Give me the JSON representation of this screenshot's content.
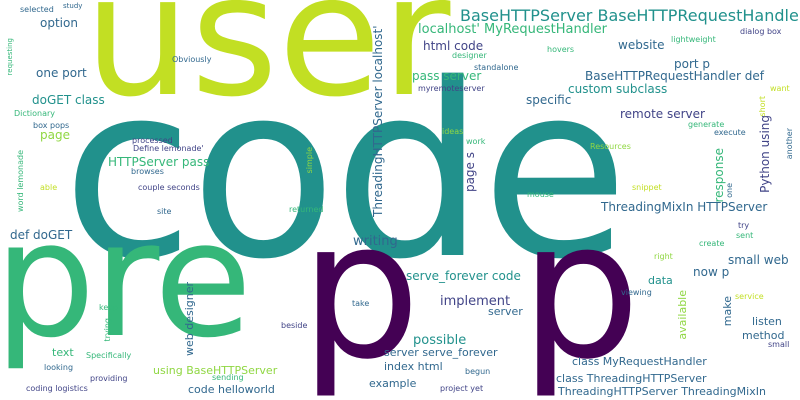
{
  "palette": {
    "dark_purple": "#440154",
    "indigo": "#414487",
    "blue": "#31688e",
    "teal": "#21918c",
    "green": "#35b779",
    "light_green": "#90d743",
    "yellow_green": "#c2df23",
    "yellow": "#fde725",
    "background": "#ffffff"
  },
  "words": {
    "user": "user",
    "code": "code",
    "pre": "pre",
    "p1": "p",
    "p2": "p",
    "basehttp_pair": "BaseHTTPServer BaseHTTPRequestHandler",
    "localhost_myrequest": "localhost' MyRequestHandler",
    "threading_localhost": "ThreadingHTTPServer localhost'",
    "html_code": "html code",
    "website": "website",
    "option": "option",
    "pass_server": "pass server",
    "one_port": "one port",
    "port_p": "port p",
    "doget_class": "doGET class",
    "base_def": "BaseHTTPRequestHandler def",
    "custom_subclass": "custom subclass",
    "specific": "specific",
    "remote_server": "remote server",
    "myremoteserver": "myremoteserver",
    "standalone": "standalone",
    "page": "page",
    "page_s": "page s",
    "httpserver_pass": "HTTPServer pass",
    "threadingmixin_httpserver": "ThreadingMixIn HTTPServer",
    "def_doget": "def doGET",
    "writing": "writing",
    "response": "response",
    "python_using": "Python using",
    "small_web": "small web",
    "now_p": "now p",
    "serve_forever_code": "serve_forever code",
    "implement": "implement",
    "server": "server",
    "possible": "possible",
    "server_serve_forever": "server serve_forever",
    "index_html": "index html",
    "example": "example",
    "using_basehttpserver": "using BaseHTTPServer",
    "code_helloworld": "code helloworld",
    "web_designer": "web designer",
    "class_myrequesthandler": "class MyRequestHandler",
    "class_threadinghttpserver": "class ThreadingHTTPServer",
    "threading_mixin_full": "ThreadingHTTPServer ThreadingMixIn",
    "available": "available",
    "make": "make",
    "listen": "listen",
    "method": "method",
    "data": "data",
    "text": "text",
    "selected": "selected",
    "study": "study",
    "requesting": "requesting",
    "dictionary": "Dictionary",
    "box_pops": "box pops",
    "obviously": "Obviously",
    "processed": "processed",
    "define_lemonade": "Define lemonade'",
    "browses": "browses",
    "couple_seconds": "couple seconds",
    "site": "site",
    "word_lemonade": "word lemonade",
    "able": "able",
    "simple": "simple",
    "returned": "returned",
    "ideas": "ideas",
    "work": "work",
    "designer": "designer",
    "hovers": "hovers",
    "lightweight": "lightweight",
    "dialog_box": "dialog box",
    "want": "want",
    "short": "short",
    "generate": "generate",
    "execute": "execute",
    "another": "another",
    "resources": "Resources",
    "snippet": "snippet",
    "mouse": "mouse",
    "one": "one",
    "try": "try",
    "sent": "sent",
    "create": "create",
    "right": "right",
    "viewing": "viewing",
    "service": "service",
    "small": "small",
    "keep": "keep",
    "trying": "trying",
    "take": "take",
    "beside": "beside",
    "specifically": "Specifically",
    "looking": "looking",
    "providing": "providing",
    "sending": "sending",
    "begun": "begun",
    "coding_logistics": "coding logistics",
    "project_yet": "project yet"
  }
}
